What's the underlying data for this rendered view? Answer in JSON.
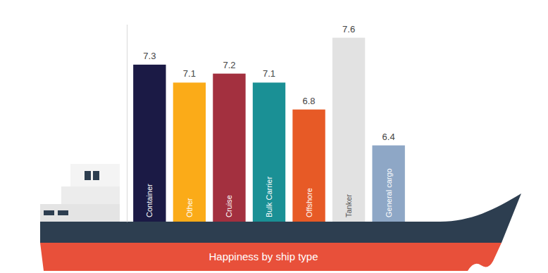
{
  "chart_data": {
    "type": "bar",
    "title": "Happiness by ship type",
    "categories": [
      "Container",
      "Other",
      "Cruise",
      "Bulk Carrier",
      "Offshore",
      "Tanker",
      "General cargo"
    ],
    "values": [
      7.3,
      7.1,
      7.2,
      7.1,
      6.8,
      7.6,
      6.4
    ],
    "colors": [
      "#1b1a45",
      "#fbab18",
      "#a3303f",
      "#1a9095",
      "#e75a26",
      "#e2e2e2",
      "#8ea7c6"
    ],
    "ylim": [
      5.55,
      7.75
    ],
    "data_labels": true
  }
}
